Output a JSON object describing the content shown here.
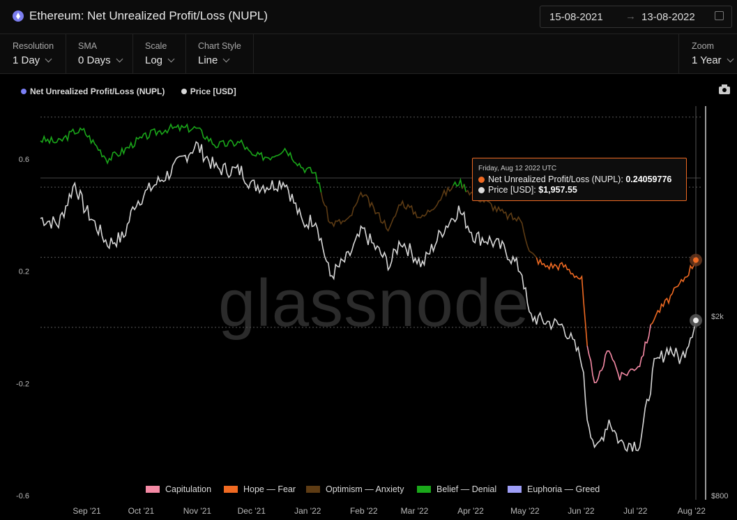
{
  "header": {
    "title": "Ethereum: Net Unrealized Profit/Loss (NUPL)",
    "date_from": "15-08-2021",
    "date_arrow": "→",
    "date_to": "13-08-2022"
  },
  "controls": [
    {
      "label": "Resolution",
      "value": "1 Day"
    },
    {
      "label": "SMA",
      "value": "0 Days"
    },
    {
      "label": "Scale",
      "value": "Log"
    },
    {
      "label": "Chart Style",
      "value": "Line"
    },
    {
      "label": "Zoom",
      "value": "1 Year"
    }
  ],
  "legend": [
    {
      "name": "Net Unrealized Profit/Loss (NUPL)",
      "color": "#7b7ff5"
    },
    {
      "name": "Price [USD]",
      "color": "#d8d8d8"
    }
  ],
  "watermark": "glassnode",
  "tooltip": {
    "date": "Friday, Aug 12 2022 UTC",
    "nupl_label": "Net Unrealized Profit/Loss (NUPL):",
    "nupl_value": "0.24059776",
    "price_label": "Price [USD]:",
    "price_value": "$1,957.55",
    "nupl_color": "#f06a22",
    "price_color": "#dddddd"
  },
  "zones": [
    {
      "name": "Capitulation",
      "color": "#f58aa5"
    },
    {
      "name": "Hope — Fear",
      "color": "#f06a22"
    },
    {
      "name": "Optimism — Anxiety",
      "color": "#5e3c14"
    },
    {
      "name": "Belief — Denial",
      "color": "#1aa81a"
    },
    {
      "name": "Euphoria — Greed",
      "color": "#9e9ef7"
    }
  ],
  "chart_data": {
    "type": "line",
    "x_tick_labels": [
      "Sep '21",
      "Oct '21",
      "Nov '21",
      "Dec '21",
      "Jan '22",
      "Feb '22",
      "Mar '22",
      "Apr '22",
      "May '22",
      "Jun '22",
      "Jul '22",
      "Aug '22"
    ],
    "y_left_ticks": [
      "0.6",
      "0.2",
      "-0.2",
      "-0.6"
    ],
    "y_left_range": [
      -0.6,
      0.75
    ],
    "y_right_ticks": [
      "$2k",
      "$800"
    ],
    "y_right_scale": "log",
    "zone_thresholds": [
      0,
      0.25,
      0.5,
      0.75
    ],
    "series": [
      {
        "name": "Net Unrealized Profit/Loss (NUPL)",
        "x": [
          "2021-08-15",
          "2021-08-25",
          "2021-09-03",
          "2021-09-08",
          "2021-09-21",
          "2021-09-30",
          "2021-10-06",
          "2021-10-15",
          "2021-10-25",
          "2021-11-09",
          "2021-11-20",
          "2021-12-04",
          "2021-12-10",
          "2021-12-20",
          "2021-12-28",
          "2022-01-07",
          "2022-01-14",
          "2022-01-22",
          "2022-02-01",
          "2022-02-09",
          "2022-02-14",
          "2022-02-24",
          "2022-03-02",
          "2022-03-14",
          "2022-03-25",
          "2022-04-03",
          "2022-04-12",
          "2022-04-20",
          "2022-04-29",
          "2022-05-08",
          "2022-05-12",
          "2022-05-20",
          "2022-05-31",
          "2022-06-10",
          "2022-06-13",
          "2022-06-18",
          "2022-06-25",
          "2022-07-01",
          "2022-07-12",
          "2022-07-20",
          "2022-07-28",
          "2022-08-04",
          "2022-08-12"
        ],
        "values": [
          0.67,
          0.66,
          0.7,
          0.7,
          0.6,
          0.63,
          0.66,
          0.69,
          0.71,
          0.71,
          0.65,
          0.66,
          0.61,
          0.61,
          0.64,
          0.57,
          0.55,
          0.37,
          0.38,
          0.48,
          0.43,
          0.35,
          0.45,
          0.39,
          0.47,
          0.52,
          0.47,
          0.44,
          0.4,
          0.38,
          0.27,
          0.22,
          0.22,
          0.17,
          -0.08,
          -0.21,
          -0.07,
          -0.18,
          -0.13,
          0.04,
          0.1,
          0.16,
          0.24
        ]
      },
      {
        "name": "Price [USD]",
        "x": [
          "2021-08-15",
          "2021-08-25",
          "2021-09-03",
          "2021-09-08",
          "2021-09-21",
          "2021-09-30",
          "2021-10-06",
          "2021-10-15",
          "2021-10-25",
          "2021-11-09",
          "2021-11-20",
          "2021-12-04",
          "2021-12-10",
          "2021-12-20",
          "2021-12-28",
          "2022-01-07",
          "2022-01-14",
          "2022-01-22",
          "2022-02-01",
          "2022-02-09",
          "2022-02-14",
          "2022-02-24",
          "2022-03-02",
          "2022-03-14",
          "2022-03-25",
          "2022-04-03",
          "2022-04-12",
          "2022-04-20",
          "2022-04-29",
          "2022-05-08",
          "2022-05-12",
          "2022-05-20",
          "2022-05-31",
          "2022-06-10",
          "2022-06-13",
          "2022-06-18",
          "2022-06-25",
          "2022-07-01",
          "2022-07-12",
          "2022-07-20",
          "2022-07-28",
          "2022-08-04",
          "2022-08-12"
        ],
        "values": [
          3300,
          3200,
          3950,
          3500,
          2900,
          3000,
          3550,
          3850,
          4150,
          4800,
          4250,
          4200,
          3900,
          3900,
          4000,
          3200,
          3300,
          2450,
          2700,
          3100,
          2900,
          2600,
          2950,
          2600,
          3100,
          3450,
          3000,
          2950,
          2800,
          2500,
          2000,
          1950,
          1900,
          1600,
          1200,
          1000,
          1180,
          1050,
          1040,
          1550,
          1700,
          1600,
          1957.55
        ]
      }
    ]
  }
}
